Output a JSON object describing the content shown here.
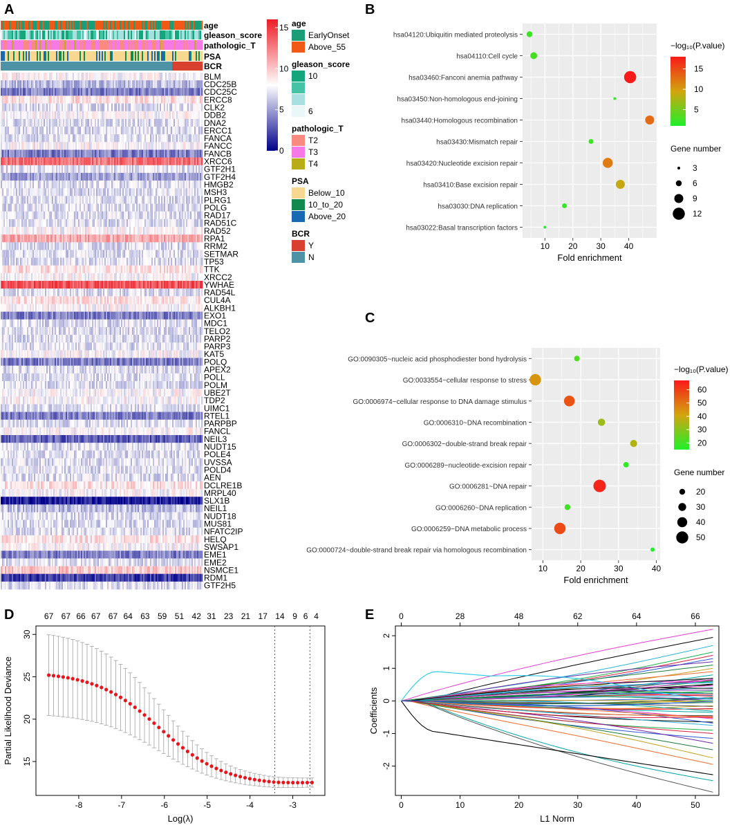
{
  "panel_labels": {
    "a": "A",
    "b": "B",
    "c": "C",
    "d": "D",
    "e": "E"
  },
  "chart_data": [
    {
      "panel": "A",
      "type": "heatmap",
      "annotation_tracks": [
        "age",
        "gleason_score",
        "pathologic_T",
        "PSA",
        "BCR"
      ],
      "genes": [
        "BLM",
        "CDC25B",
        "CDC25C",
        "ERCC8",
        "CLK2",
        "DDB2",
        "DNA2",
        "ERCC1",
        "FANCA",
        "FANCC",
        "FANCB",
        "XRCC6",
        "GTF2H1",
        "GTF2H4",
        "HMGB2",
        "MSH3",
        "PLRG1",
        "POLG",
        "RAD17",
        "RAD51C",
        "RAD52",
        "RPA1",
        "RRM2",
        "SETMAR",
        "TP53",
        "TTK",
        "XRCC2",
        "YWHAE",
        "RAD54L",
        "CUL4A",
        "ALKBH1",
        "EXO1",
        "MDC1",
        "TELO2",
        "PARP2",
        "PARP3",
        "KAT5",
        "POLQ",
        "APEX2",
        "POLL",
        "POLM",
        "UBE2T",
        "TDP2",
        "UIMC1",
        "RTEL1",
        "PARPBP",
        "FANCL",
        "NEIL3",
        "NUDT15",
        "POLE4",
        "UVSSA",
        "POLD4",
        "AEN",
        "DCLRE1B",
        "MRPL40",
        "SLX1B",
        "NEIL1",
        "NUDT18",
        "MUS81",
        "NFATC2IP",
        "HELQ",
        "SWSAP1",
        "EME1",
        "EME2",
        "NSMCE1",
        "RDM1",
        "GTF2H5"
      ],
      "gene_levels": [
        8,
        6,
        4,
        9,
        7,
        8,
        7,
        7,
        7,
        8,
        4,
        13,
        7,
        5,
        7,
        7,
        7,
        7,
        7,
        7,
        8,
        11,
        7,
        7,
        7,
        9,
        8,
        14,
        7,
        9,
        8,
        4,
        7,
        7,
        7,
        7,
        8,
        4,
        7,
        7,
        7,
        8,
        8,
        7,
        4,
        7,
        8,
        3,
        7,
        7,
        7,
        7,
        7,
        9,
        8,
        1,
        6,
        7,
        7,
        7,
        9,
        8,
        4,
        7,
        10,
        2,
        7
      ],
      "colorbar": {
        "ticks": [
          0,
          5,
          10,
          15
        ],
        "min": 0,
        "max": 16,
        "low": "#00008B",
        "mid": "#FFFFFF",
        "high": "#EE1C25"
      },
      "legends": [
        {
          "title": "age",
          "items": [
            {
              "label": "EarlyOnset",
              "color": "#1B9E77"
            },
            {
              "label": "Above_55",
              "color": "#F05A16"
            }
          ]
        },
        {
          "title": "gleason_score",
          "items": [
            {
              "label": "10",
              "color": "#12A67A"
            },
            {
              "label": "",
              "color": "#45C3A6"
            },
            {
              "label": "",
              "color": "#A8E0DF"
            },
            {
              "label": "6",
              "color": "#EAF7F8"
            }
          ]
        },
        {
          "title": "pathologic_T",
          "items": [
            {
              "label": "T2",
              "color": "#F88A80"
            },
            {
              "label": "T3",
              "color": "#F57AE6"
            },
            {
              "label": "T4",
              "color": "#B8AC17"
            }
          ]
        },
        {
          "title": "PSA",
          "items": [
            {
              "label": "Below_10",
              "color": "#F8D890"
            },
            {
              "label": "10_to_20",
              "color": "#128A4E"
            },
            {
              "label": "Above_20",
              "color": "#1869B3"
            }
          ]
        },
        {
          "title": "BCR",
          "items": [
            {
              "label": "Y",
              "color": "#D8412F"
            },
            {
              "label": "N",
              "color": "#4E92A5"
            }
          ]
        }
      ]
    },
    {
      "panel": "B",
      "type": "scatter",
      "terms": [
        "hsa04120:Ubiquitin mediated proteolysis",
        "hsa04110:Cell cycle",
        "hsa03460:Fanconi anemia pathway",
        "hsa03450:Non-homologous end-joining",
        "hsa03440:Homologous recombination",
        "hsa03430:Mismatch repair",
        "hsa03420:Nucleotide excision repair",
        "hsa03410:Base excision repair",
        "hsa03030:DNA replication",
        "hsa03022:Basal transcription factors"
      ],
      "fold_enrichment": [
        4.5,
        6,
        40.5,
        35,
        47.5,
        26.5,
        32.5,
        37,
        17,
        10
      ],
      "neg_log10_p": [
        2.5,
        3,
        18,
        2,
        13,
        2.5,
        12,
        9,
        2,
        1
      ],
      "gene_number": [
        6,
        7,
        12,
        3,
        9,
        5,
        10,
        9,
        5,
        3
      ],
      "xlabel": "Fold enrichment",
      "xlim": [
        2,
        50
      ],
      "xticks": [
        10,
        20,
        30,
        40
      ],
      "color_title": "−log₁₀(P.value)",
      "color_ticks": [
        5,
        10,
        15
      ],
      "color_range": [
        1,
        18
      ],
      "size_title": "Gene number",
      "size_ticks": [
        3,
        6,
        9,
        12
      ]
    },
    {
      "panel": "C",
      "type": "scatter",
      "terms": [
        "GO:0090305~nucleic acid phosphodiester bond hydrolysis",
        "GO:0033554~cellular response to stress",
        "GO:0006974~cellular response to DNA damage stimulus",
        "GO:0006310~DNA recombination",
        "GO:0006302~double-strand break repair",
        "GO:0006289~nucleotide-excision repair",
        "GO:0006281~DNA repair",
        "GO:0006260~DNA replication",
        "GO:0006259~DNA metabolic process",
        "GO:0000724~double-strand break repair via homologous recombination"
      ],
      "fold_enrichment": [
        19,
        8,
        17,
        25.5,
        34,
        32,
        25,
        16.5,
        14.5,
        39
      ],
      "neg_log10_p": [
        22,
        44,
        56,
        33,
        36,
        18,
        65,
        20,
        58,
        15
      ],
      "gene_number": [
        19,
        47,
        44,
        27,
        26,
        18,
        52,
        20,
        47,
        12
      ],
      "xlabel": "Fold enrichment",
      "xlim": [
        7,
        41
      ],
      "xticks": [
        10,
        20,
        30,
        40
      ],
      "color_title": "−log₁₀(P.value)",
      "color_ticks": [
        20,
        30,
        40,
        50,
        60
      ],
      "color_range": [
        15,
        67
      ],
      "size_title": "Gene number",
      "size_ticks": [
        20,
        30,
        40,
        50
      ]
    },
    {
      "panel": "D",
      "type": "line",
      "xlabel": "Log(λ)",
      "ylabel": "Partial Likelihood Deviance",
      "xlim": [
        -9,
        -2.25
      ],
      "ylim": [
        11,
        31
      ],
      "xticks": [
        -8,
        -7,
        -6,
        -5,
        -4,
        -3
      ],
      "yticks": [
        15,
        20,
        25,
        30
      ],
      "top_counts": [
        67,
        67,
        66,
        67,
        67,
        64,
        63,
        59,
        51,
        42,
        31,
        23,
        21,
        17,
        14,
        9,
        6,
        4
      ],
      "top_count_x": [
        -8.7,
        -8.3,
        -7.95,
        -7.6,
        -7.2,
        -6.85,
        -6.45,
        -6.05,
        -5.65,
        -5.25,
        -4.9,
        -4.5,
        -4.1,
        -3.7,
        -3.3,
        -2.95,
        -2.7,
        -2.45
      ],
      "lambda_min": -3.42,
      "lambda_1se": -2.6,
      "curve_start": -8.7,
      "curve_end": -2.55,
      "n_points": 56
    },
    {
      "panel": "E",
      "type": "line",
      "xlabel": "L1 Norm",
      "ylabel": "Coefficients",
      "xlim": [
        -1,
        54
      ],
      "ylim": [
        -2.9,
        2.3
      ],
      "xticks": [
        0,
        10,
        20,
        30,
        40,
        50
      ],
      "yticks": [
        -2,
        -1,
        0,
        1,
        2
      ],
      "top_ticks": [
        0,
        28,
        48,
        62,
        64,
        66
      ],
      "top_tick_x": [
        0,
        10,
        20,
        30,
        40,
        50
      ],
      "x_end": 53,
      "end_values": [
        2.2,
        1.95,
        1.7,
        1.5,
        1.4,
        1.3,
        1.2,
        1.1,
        1.0,
        0.9,
        0.8,
        0.7,
        0.6,
        0.5,
        0.4,
        0.3,
        0.2,
        0.1,
        0.05,
        -0.05,
        -0.15,
        -0.25,
        -0.35,
        -0.45,
        -0.55,
        -0.65,
        -0.75,
        -0.9,
        -1.0,
        -1.15,
        -1.3,
        -1.5,
        -1.75,
        -1.95,
        -2.45,
        -2.8
      ],
      "line_colors": [
        "#E63AD6",
        "#000000",
        "#2FB2D8",
        "#1BB04A",
        "#D81E3C",
        "#2A57D6",
        "#6B28A8",
        "#1E7A37",
        "#C4A01E",
        "#F26B2D",
        "#00A6A6",
        "#555555"
      ]
    }
  ]
}
